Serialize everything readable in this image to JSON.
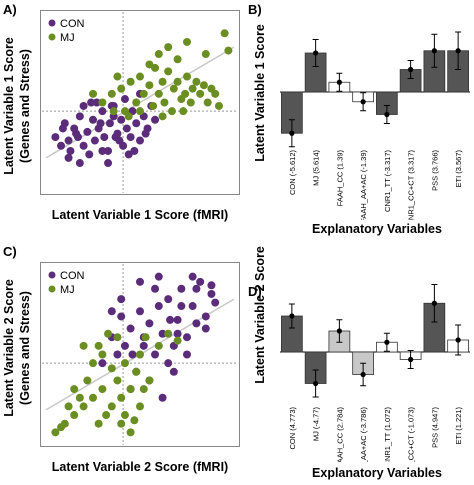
{
  "panels": {
    "A": {
      "letter": "A)",
      "chart_data": {
        "type": "scatter",
        "ylabel": "Latent Variable 1 Score (Genes and Stress)",
        "ylabel_lines": [
          "Latent Variable 1 Score",
          "(Genes and Stress)"
        ],
        "xlabel": "Latent Variable 1 Score (fMRI)",
        "legend": "top-left",
        "series": [
          {
            "name": "CON",
            "color": "#5b2c7a",
            "x": [
              0.05,
              0.08,
              0.1,
              0.12,
              0.13,
              0.15,
              0.17,
              0.18,
              0.2,
              0.22,
              0.23,
              0.25,
              0.26,
              0.28,
              0.3,
              0.31,
              0.33,
              0.34,
              0.36,
              0.38,
              0.4,
              0.41,
              0.43,
              0.45,
              0.46,
              0.48,
              0.5,
              0.52,
              0.54,
              0.56,
              0.12,
              0.2,
              0.27,
              0.33,
              0.39,
              0.44,
              0.18,
              0.24,
              0.3,
              0.36,
              0.42,
              0.5,
              0.58,
              0.16,
              0.29,
              0.35,
              0.47,
              0.53,
              0.09,
              0.37
            ],
            "y": [
              0.3,
              0.25,
              0.38,
              0.28,
              0.22,
              0.35,
              0.3,
              0.42,
              0.25,
              0.33,
              0.2,
              0.4,
              0.28,
              0.35,
              0.45,
              0.3,
              0.22,
              0.38,
              0.48,
              0.32,
              0.4,
              0.25,
              0.35,
              0.3,
              0.45,
              0.38,
              0.28,
              0.42,
              0.35,
              0.48,
              0.18,
              0.48,
              0.5,
              0.15,
              0.28,
              0.2,
              0.15,
              0.5,
              0.22,
              0.42,
              0.52,
              0.55,
              0.4,
              0.32,
              0.38,
              0.48,
              0.22,
              0.32,
              0.35,
              0.3
            ]
          },
          {
            "name": "MJ",
            "color": "#6b8e23",
            "x": [
              0.3,
              0.35,
              0.4,
              0.42,
              0.45,
              0.48,
              0.5,
              0.52,
              0.55,
              0.57,
              0.58,
              0.6,
              0.62,
              0.63,
              0.65,
              0.67,
              0.68,
              0.7,
              0.72,
              0.74,
              0.75,
              0.77,
              0.78,
              0.8,
              0.82,
              0.84,
              0.86,
              0.88,
              0.9,
              0.92,
              0.55,
              0.6,
              0.65,
              0.7,
              0.38,
              0.44,
              0.75,
              0.85,
              0.95,
              0.97,
              0.5,
              0.62,
              0.73,
              0.25,
              0.36
            ],
            "y": [
              0.5,
              0.55,
              0.58,
              0.45,
              0.62,
              0.5,
              0.65,
              0.55,
              0.6,
              0.48,
              0.7,
              0.55,
              0.62,
              0.5,
              0.68,
              0.45,
              0.58,
              0.62,
              0.52,
              0.55,
              0.65,
              0.5,
              0.58,
              0.62,
              0.55,
              0.6,
              0.5,
              0.58,
              0.55,
              0.48,
              0.72,
              0.78,
              0.82,
              0.75,
              0.65,
              0.42,
              0.85,
              0.78,
              0.9,
              0.8,
              0.45,
              0.42,
              0.45,
              0.55,
              0.45
            ]
          }
        ]
      }
    },
    "B": {
      "letter": "B)",
      "chart_data": {
        "type": "bar",
        "ylabel": "Latent Variable 1 Score",
        "xlabel": "Explanatory Variables",
        "categories": [
          "CON (-5.612)",
          "MJ (5.614)",
          "FAAH_CC (1.39)",
          "FAAH_AA+AC (-1.39)",
          "CNR1_TT (-3.317)",
          "CNR1_CC+CT (3.317)",
          "PSS (3.766)",
          "ETI (3.567)"
        ],
        "values": [
          -0.55,
          0.52,
          0.13,
          -0.13,
          -0.3,
          0.3,
          0.55,
          0.55
        ],
        "errors": [
          0.18,
          0.18,
          0.12,
          0.12,
          0.12,
          0.12,
          0.22,
          0.25
        ],
        "fills": [
          "#555555",
          "#555555",
          "#ffffff",
          "#ffffff",
          "#555555",
          "#555555",
          "#555555",
          "#555555"
        ]
      }
    },
    "C": {
      "letter": "C)",
      "chart_data": {
        "type": "scatter",
        "ylabel": "Latent Variable 2 Score (Genes and Stress)",
        "ylabel_lines": [
          "Latent Variable 2 Score",
          "(Genes and Stress)"
        ],
        "xlabel": "Latent Variable 2 Score (fMRI)",
        "legend": "top-left",
        "series": [
          {
            "name": "CON",
            "color": "#5b2c7a",
            "x": [
              0.3,
              0.35,
              0.38,
              0.4,
              0.42,
              0.45,
              0.48,
              0.5,
              0.52,
              0.55,
              0.58,
              0.6,
              0.62,
              0.65,
              0.68,
              0.7,
              0.72,
              0.75,
              0.78,
              0.8,
              0.82,
              0.85,
              0.88,
              0.9,
              0.45,
              0.55,
              0.65,
              0.75,
              0.5,
              0.6,
              0.7,
              0.8,
              0.4,
              0.62,
              0.72,
              0.85,
              0.35,
              0.52,
              0.68,
              0.78,
              0.58,
              0.46,
              0.66,
              0.88
            ],
            "y": [
              0.45,
              0.6,
              0.5,
              0.72,
              0.55,
              0.65,
              0.4,
              0.75,
              0.6,
              0.68,
              0.5,
              0.78,
              0.62,
              0.82,
              0.55,
              0.7,
              0.88,
              0.6,
              0.78,
              0.68,
              0.92,
              0.72,
              0.85,
              0.8,
              0.3,
              0.35,
              0.45,
              0.5,
              0.92,
              0.95,
              0.62,
              0.88,
              0.82,
              0.25,
              0.78,
              0.65,
              0.75,
              0.55,
              0.4,
              0.95,
              0.88,
              0.5,
              0.7,
              0.9
            ]
          },
          {
            "name": "MJ",
            "color": "#6b8e23",
            "x": [
              0.05,
              0.1,
              0.15,
              0.2,
              0.22,
              0.25,
              0.28,
              0.3,
              0.32,
              0.35,
              0.38,
              0.4,
              0.42,
              0.45,
              0.48,
              0.5,
              0.52,
              0.55,
              0.3,
              0.35,
              0.4,
              0.45,
              0.5,
              0.25,
              0.2,
              0.15,
              0.38,
              0.42,
              0.33,
              0.28,
              0.18,
              0.47,
              0.53,
              0.6,
              0.65,
              0.7,
              0.12,
              0.08
            ],
            "y": [
              0.05,
              0.1,
              0.15,
              0.2,
              0.35,
              0.25,
              0.1,
              0.3,
              0.15,
              0.2,
              0.35,
              0.25,
              0.45,
              0.3,
              0.4,
              0.5,
              0.3,
              0.35,
              0.5,
              0.42,
              0.1,
              0.05,
              0.2,
              0.45,
              0.55,
              0.3,
              0.6,
              0.15,
              0.62,
              0.55,
              0.25,
              0.12,
              0.6,
              0.55,
              0.62,
              0.58,
              0.2,
              0.08
            ]
          }
        ]
      }
    },
    "D": {
      "letter": "D)",
      "chart_data": {
        "type": "bar",
        "ylabel": "Latent Variable 2 Score",
        "xlabel": "Explanatory Variables",
        "categories": [
          "CON (4.773)",
          "MJ (-4.77)",
          "FAAH_CC (2.784)",
          "FAAH_AA+AC (-3.786)",
          "CNR1_TT (1.072)",
          "CNR1_CC+CT (-1.073)",
          "PSS (4.947)",
          "ETI (1.221)"
        ],
        "values": [
          0.48,
          -0.42,
          0.28,
          -0.3,
          0.13,
          -0.1,
          0.65,
          0.16
        ],
        "errors": [
          0.16,
          0.18,
          0.15,
          0.15,
          0.12,
          0.12,
          0.25,
          0.2
        ],
        "fills": [
          "#555555",
          "#555555",
          "#c8c8c8",
          "#c8c8c8",
          "#ffffff",
          "#ffffff",
          "#555555",
          "#ffffff"
        ]
      }
    }
  }
}
